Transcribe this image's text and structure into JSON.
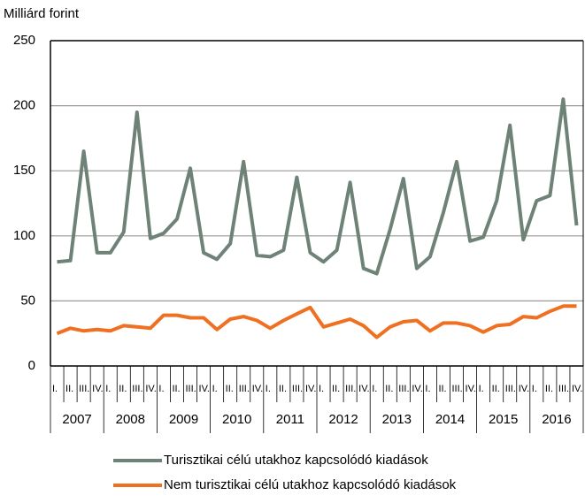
{
  "chart_data": {
    "type": "line",
    "y_axis_label": "Milliárd forint",
    "categories": [
      "I.",
      "II.",
      "III.",
      "IV.",
      "I.",
      "II.",
      "III.",
      "IV.",
      "I.",
      "II.",
      "III.",
      "IV.",
      "I.",
      "II.",
      "III.",
      "IV.",
      "I.",
      "II.",
      "III.",
      "IV.",
      "I.",
      "II.",
      "III.",
      "IV.",
      "I.",
      "II.",
      "III.",
      "IV.",
      "I.",
      "II.",
      "III.",
      "IV.",
      "I.",
      "II.",
      "III.",
      "IV.",
      "I.",
      "II.",
      "III.",
      "IV."
    ],
    "years": [
      "2007",
      "2008",
      "2009",
      "2010",
      "2011",
      "2012",
      "2013",
      "2014",
      "2015",
      "2016"
    ],
    "series": [
      {
        "name": "Turisztikai célú utakhoz kapcsolódó kiadások",
        "color": "#6e8277",
        "values": [
          80,
          81,
          165,
          87,
          87,
          103,
          195,
          98,
          102,
          113,
          152,
          87,
          82,
          94,
          157,
          85,
          84,
          89,
          145,
          87,
          80,
          89,
          141,
          75,
          71,
          105,
          144,
          75,
          84,
          118,
          157,
          96,
          99,
          127,
          185,
          97,
          127,
          131,
          205,
          108
        ]
      },
      {
        "name": "Nem turisztikai célú utakhoz kapcsolódó kiadások",
        "color": "#f07022",
        "values": [
          25,
          29,
          27,
          28,
          27,
          31,
          30,
          29,
          39,
          39,
          37,
          37,
          28,
          36,
          38,
          35,
          29,
          35,
          40,
          45,
          30,
          33,
          36,
          31,
          22,
          30,
          34,
          35,
          27,
          33,
          33,
          31,
          26,
          31,
          32,
          38,
          37,
          42,
          46,
          46
        ]
      }
    ],
    "ylim": [
      0,
      250
    ],
    "yticks": [
      0,
      50,
      100,
      150,
      200,
      250
    ],
    "grid": true
  }
}
